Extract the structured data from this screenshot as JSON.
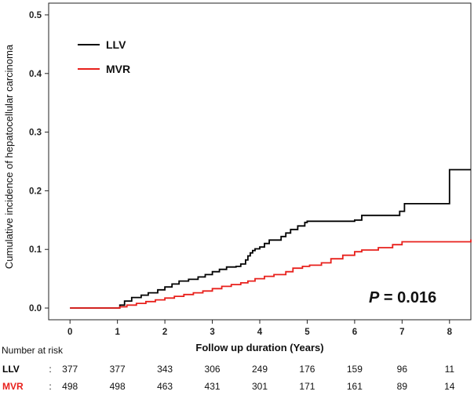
{
  "chart_data": {
    "type": "line",
    "step": true,
    "ylabel": "Cumulative incidence of hepatocellular carcinoma",
    "xlabel": "Follow up duration (Years)",
    "xlim": [
      -0.45,
      8.45
    ],
    "ylim": [
      -0.02,
      0.52
    ],
    "xticks": [
      0,
      1,
      2,
      3,
      4,
      5,
      6,
      7,
      8
    ],
    "yticks": [
      "0.0",
      "0.1",
      "0.2",
      "0.3",
      "0.4",
      "0.5"
    ],
    "grid": false,
    "legend_position": "top-left",
    "series": [
      {
        "name": "LLV",
        "color": "#000000",
        "x": [
          0,
          1.0,
          1.05,
          1.15,
          1.3,
          1.5,
          1.65,
          1.85,
          2.0,
          2.15,
          2.3,
          2.5,
          2.7,
          2.85,
          3.0,
          3.15,
          3.3,
          3.5,
          3.6,
          3.7,
          3.75,
          3.8,
          3.85,
          3.9,
          4.0,
          4.1,
          4.2,
          4.3,
          4.45,
          4.55,
          4.65,
          4.8,
          4.95,
          5.0,
          5.6,
          6.0,
          6.15,
          6.95,
          7.05,
          7.9,
          8.0,
          8.45
        ],
        "y": [
          0,
          0,
          0.005,
          0.012,
          0.018,
          0.022,
          0.026,
          0.031,
          0.036,
          0.041,
          0.046,
          0.049,
          0.053,
          0.057,
          0.062,
          0.066,
          0.07,
          0.071,
          0.075,
          0.082,
          0.089,
          0.094,
          0.098,
          0.101,
          0.104,
          0.11,
          0.116,
          0.116,
          0.122,
          0.128,
          0.134,
          0.14,
          0.146,
          0.148,
          0.148,
          0.15,
          0.158,
          0.165,
          0.178,
          0.178,
          0.236,
          0.236
        ]
      },
      {
        "name": "MVR",
        "color": "#e8201c",
        "x": [
          0,
          1.05,
          1.2,
          1.4,
          1.6,
          1.8,
          2.0,
          2.2,
          2.4,
          2.6,
          2.8,
          3.0,
          3.2,
          3.4,
          3.6,
          3.75,
          3.9,
          4.1,
          4.3,
          4.55,
          4.7,
          4.9,
          5.05,
          5.3,
          5.5,
          5.75,
          6.0,
          6.15,
          6.5,
          6.8,
          7.0,
          8.45
        ],
        "y": [
          0,
          0.002,
          0.005,
          0.008,
          0.011,
          0.014,
          0.017,
          0.02,
          0.023,
          0.026,
          0.029,
          0.033,
          0.037,
          0.04,
          0.043,
          0.046,
          0.05,
          0.054,
          0.057,
          0.062,
          0.068,
          0.071,
          0.073,
          0.077,
          0.084,
          0.09,
          0.096,
          0.099,
          0.103,
          0.108,
          0.113,
          0.117
        ]
      }
    ],
    "annotations": {
      "p_italic": "P",
      "p_rest": " = 0.016"
    },
    "risk_table": {
      "title": "Number  at risk",
      "rows": [
        {
          "label": "LLV",
          "color": "#000000",
          "values": [
            377,
            377,
            343,
            306,
            249,
            176,
            159,
            96,
            11
          ]
        },
        {
          "label": "MVR",
          "color": "#e8201c",
          "values": [
            498,
            498,
            463,
            431,
            301,
            171,
            161,
            89,
            14
          ]
        }
      ]
    }
  }
}
